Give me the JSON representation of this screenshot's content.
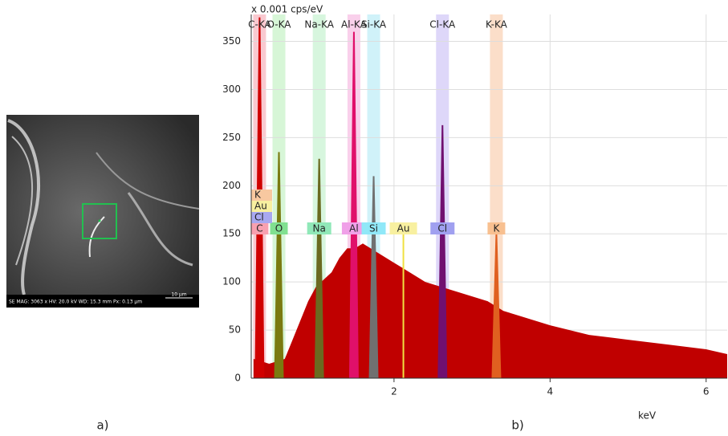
{
  "chart_data": {
    "type": "spectrum",
    "y_label": "x 0.001 cps/eV",
    "x_label": "keV",
    "xlim": [
      0.17,
      6.27
    ],
    "ylim": [
      0,
      378
    ],
    "xticks": [
      2,
      4,
      6
    ],
    "yticks": [
      0,
      50,
      100,
      150,
      200,
      250,
      300,
      350
    ],
    "grid": true,
    "color": "#c00000",
    "x": [
      0.2,
      0.4,
      0.6,
      0.7,
      0.8,
      0.9,
      1.0,
      1.2,
      1.3,
      1.4,
      1.5,
      1.6,
      1.7,
      1.8,
      1.9,
      2.0,
      2.1,
      2.2,
      2.3,
      2.4,
      2.6,
      2.8,
      3.0,
      3.2,
      3.4,
      3.6,
      3.8,
      4.0,
      4.5,
      5.0,
      5.5,
      6.0,
      6.27
    ],
    "values": [
      20,
      15,
      20,
      40,
      60,
      80,
      95,
      110,
      125,
      135,
      135,
      140,
      135,
      130,
      125,
      120,
      115,
      110,
      105,
      100,
      95,
      90,
      85,
      80,
      70,
      65,
      60,
      55,
      45,
      40,
      35,
      30,
      25
    ],
    "elements": [
      {
        "name": "C-KA",
        "symbol": "C",
        "energy": 0.277,
        "height": 375,
        "color": "#d00000",
        "band": "#f8c0c8",
        "box": "#f8a0b0"
      },
      {
        "name": "O-KA",
        "symbol": "O",
        "energy": 0.525,
        "height": 235,
        "color": "#7a7a10",
        "band": "#d0f4d0",
        "box": "#80e090"
      },
      {
        "name": "Na-KA",
        "symbol": "Na",
        "energy": 1.041,
        "height": 228,
        "color": "#6a6a20",
        "band": "#d0f4d8",
        "box": "#90e8b8"
      },
      {
        "name": "Al-KA",
        "symbol": "Al",
        "energy": 1.486,
        "height": 360,
        "color": "#e0106a",
        "band": "#f8c8e8",
        "box": "#f0a0e8"
      },
      {
        "name": "Si-KA",
        "symbol": "Si",
        "energy": 1.739,
        "height": 210,
        "color": "#707070",
        "band": "#c8f0f8",
        "box": "#90e8f8"
      },
      {
        "name": "Cl-KA",
        "symbol": "Cl",
        "energy": 2.621,
        "height": 263,
        "color": "#701070",
        "band": "#d8d0f8",
        "box": "#a0a0f0"
      },
      {
        "name": "K-KA",
        "symbol": "K",
        "energy": 3.312,
        "height": 150,
        "color": "#e06020",
        "band": "#fad8c0",
        "box": "#f8c090"
      }
    ],
    "other_labels": [
      {
        "symbol": "Au",
        "energy": 2.12,
        "box": "#f8f0a0"
      }
    ],
    "stack_labels": [
      {
        "symbol": "K",
        "box": "#f8c8a0"
      },
      {
        "symbol": "Au",
        "box": "#f8f0a0"
      },
      {
        "symbol": "Cl",
        "box": "#a8a8f0"
      }
    ]
  },
  "sem_image": {
    "info": "SE MAG: 3063 x HV: 20.0 kV WD: 15.3 mm Px: 0.13 µm",
    "scale": "10 µm"
  },
  "captions": [
    "a)",
    "b)"
  ]
}
